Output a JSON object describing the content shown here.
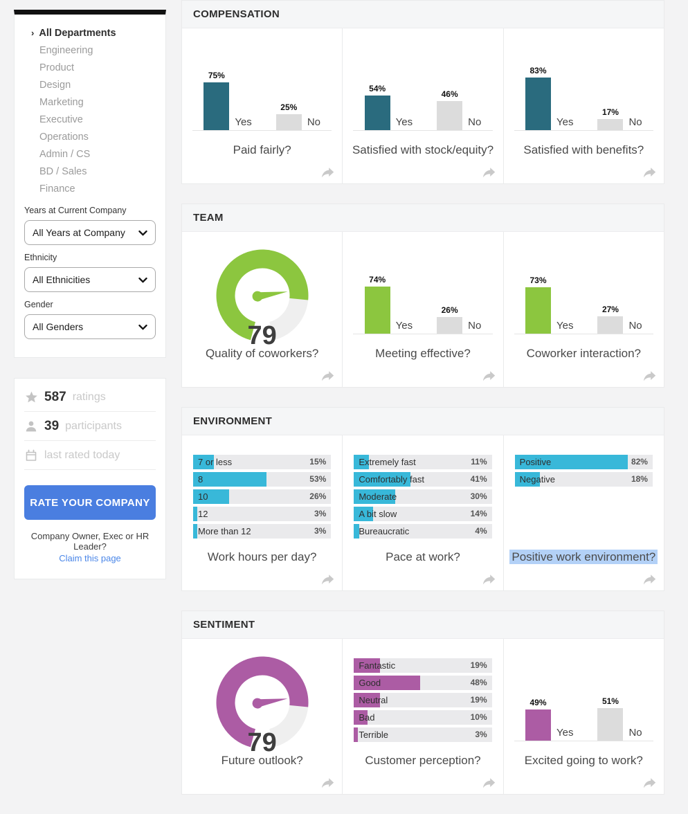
{
  "sidebar": {
    "departments": {
      "active": "All Departments",
      "active_marker": "›",
      "items": [
        "All Departments",
        "Engineering",
        "Product",
        "Design",
        "Marketing",
        "Executive",
        "Operations",
        "Admin / CS",
        "BD / Sales",
        "Finance"
      ]
    },
    "filters": [
      {
        "key": "years-at-company",
        "label": "Years at Current Company",
        "value": "All Years at Company"
      },
      {
        "key": "ethnicity",
        "label": "Ethnicity",
        "value": "All Ethnicities"
      },
      {
        "key": "gender",
        "label": "Gender",
        "value": "All Genders"
      }
    ],
    "stats": [
      {
        "icon": "star-icon",
        "value": "587",
        "label": "ratings"
      },
      {
        "icon": "user-icon",
        "value": "39",
        "label": "participants"
      },
      {
        "icon": "calendar-icon",
        "value": "",
        "label": "last rated today"
      }
    ],
    "rate_button_label": "RATE YOUR COMPANY",
    "claim_prompt": "Company Owner, Exec or HR Leader?",
    "claim_link_label": "Claim this page"
  },
  "labels": {
    "yes": "Yes",
    "no": "No",
    "pct_suffix": "%"
  },
  "colors": {
    "no_bar": "#dcdcdc",
    "track": "#eaeaec",
    "gauge_rest": "#efefef",
    "selection_highlight": "#b3d1f7",
    "teal": "#2a6b7e",
    "green": "#8cc63f",
    "cyan": "#38b8d9",
    "purple": "#ac5ca4"
  },
  "sections": [
    {
      "title": "COMPENSATION",
      "accent": "#2a6b7e",
      "cards": [
        {
          "type": "yesno",
          "yes": 75,
          "no": 25,
          "question": "Paid fairly?"
        },
        {
          "type": "yesno",
          "yes": 54,
          "no": 46,
          "question": "Satisfied with stock/equity?"
        },
        {
          "type": "yesno",
          "yes": 83,
          "no": 17,
          "question": "Satisfied with benefits?"
        }
      ]
    },
    {
      "title": "TEAM",
      "accent": "#8cc63f",
      "cards": [
        {
          "type": "gauge",
          "value": 79,
          "question": "Quality of coworkers?"
        },
        {
          "type": "yesno",
          "yes": 74,
          "no": 26,
          "question": "Meeting effective?"
        },
        {
          "type": "yesno",
          "yes": 73,
          "no": 27,
          "question": "Coworker interaction?"
        }
      ]
    },
    {
      "title": "ENVIRONMENT",
      "accent": "#38b8d9",
      "cards": [
        {
          "type": "hbars",
          "question": "Work hours per day?",
          "bars": [
            {
              "label": "7 or less",
              "pct": 15
            },
            {
              "label": "8",
              "pct": 53
            },
            {
              "label": "10",
              "pct": 26
            },
            {
              "label": "12",
              "pct": 3
            },
            {
              "label": "More than 12",
              "pct": 3
            }
          ]
        },
        {
          "type": "hbars",
          "question": "Pace at work?",
          "bars": [
            {
              "label": "Extremely fast",
              "pct": 11
            },
            {
              "label": "Comfortably fast",
              "pct": 41
            },
            {
              "label": "Moderate",
              "pct": 30
            },
            {
              "label": "A bit slow",
              "pct": 14
            },
            {
              "label": "Bureaucratic",
              "pct": 4
            }
          ]
        },
        {
          "type": "hbars",
          "question": "Positive work environment?",
          "question_highlighted": true,
          "bars": [
            {
              "label": "Positive",
              "pct": 82
            },
            {
              "label": "Negative",
              "pct": 18
            }
          ]
        }
      ]
    },
    {
      "title": "SENTIMENT",
      "accent": "#ac5ca4",
      "cards": [
        {
          "type": "gauge",
          "value": 79,
          "question": "Future outlook?"
        },
        {
          "type": "hbars",
          "question": "Customer perception?",
          "bars": [
            {
              "label": "Fantastic",
              "pct": 19
            },
            {
              "label": "Good",
              "pct": 48
            },
            {
              "label": "Neutral",
              "pct": 19
            },
            {
              "label": "Bad",
              "pct": 10
            },
            {
              "label": "Terrible",
              "pct": 3
            }
          ]
        },
        {
          "type": "yesno",
          "yes": 49,
          "no": 51,
          "question": "Excited going to work?"
        }
      ]
    }
  ]
}
